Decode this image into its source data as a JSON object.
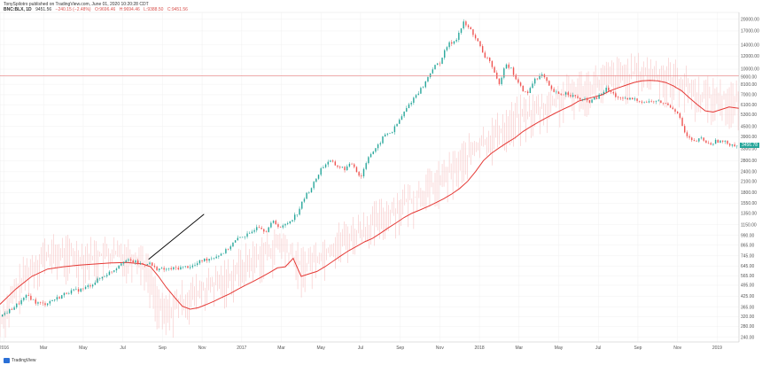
{
  "header": {
    "line1": "TonySpilotro published on TradingView.com, June 01, 2020 10:20:28 CDT",
    "symbol": "BNC:BLX, 1D",
    "last": "9451.56",
    "change": "−240.15 (−2.48%)",
    "open": "O:9696.46",
    "high": "H:9694.46",
    "low": "L:9388.50",
    "close": "C:9451.56"
  },
  "brand": {
    "name": "TradingView",
    "icon": "tradingview-logo-icon"
  },
  "colors": {
    "up": "#26a69a",
    "down": "#ef5350",
    "ma": "#e53935",
    "volatility": "#f4a6a6",
    "hline": "#e88080",
    "trendline": "#000000",
    "price_tag": "#26a69a"
  },
  "price_tag": {
    "label": "3456.78",
    "value": 3456.78
  },
  "chart_data": {
    "type": "line",
    "x_tick_labels": [
      "2016",
      "Mar",
      "May",
      "Jul",
      "Sep",
      "Nov",
      "2017",
      "Mar",
      "May",
      "Jul",
      "Sep",
      "Nov",
      "2018",
      "Mar",
      "May",
      "Jul",
      "Sep",
      "Nov",
      "2019"
    ],
    "x_tick_values": [
      0,
      2,
      4,
      6,
      8,
      10,
      12,
      14,
      16,
      18,
      20,
      22,
      24,
      26,
      28,
      30,
      32,
      34,
      36
    ],
    "xlim": [
      -0.2,
      37.1
    ],
    "y_tick_labels": [
      "20000.00",
      "17000.00",
      "14000.00",
      "12000.00",
      "10000.00",
      "9000.00",
      "8100.00",
      "7000.00",
      "6100.00",
      "5300.00",
      "4500.00",
      "3900.00",
      "3300.00",
      "2800.00",
      "2400.00",
      "2100.00",
      "1800.00",
      "1550.00",
      "1350.00",
      "1150.00",
      "990.00",
      "865.00",
      "745.00",
      "645.00",
      "565.00",
      "495.00",
      "425.00",
      "365.00",
      "320.00",
      "280.00",
      "240.00"
    ],
    "y_tick_values": [
      20000,
      17000,
      14000,
      12000,
      10000,
      9000,
      8100,
      7000,
      6100,
      5300,
      4500,
      3900,
      3300,
      2800,
      2400,
      2100,
      1800,
      1550,
      1350,
      1150,
      990,
      865,
      745,
      645,
      565,
      495,
      425,
      365,
      320,
      280,
      240
    ],
    "ylim": [
      225,
      22000
    ],
    "y_scale": "log",
    "grid": true,
    "horizontal_line": {
      "value": 9100
    },
    "trendline": {
      "x": [
        7.3,
        10.1
      ],
      "y": [
        710,
        1330
      ]
    },
    "series": [
      {
        "kind": "price",
        "x": [
          -0.2,
          0.3,
          0.8,
          1.2,
          1.6,
          2.0,
          2.4,
          2.8,
          3.2,
          3.6,
          4.0,
          4.4,
          4.8,
          5.2,
          5.6,
          6.0,
          6.5,
          7.0,
          7.3,
          7.6,
          8.0,
          8.4,
          8.8,
          9.2,
          9.6,
          10.0,
          10.4,
          10.8,
          11.2,
          11.6,
          12.0,
          12.4,
          12.8,
          13.2,
          13.6,
          14.0,
          14.4,
          14.8,
          15.2,
          15.6,
          16.0,
          16.4,
          16.8,
          17.2,
          17.6,
          18.0,
          18.4,
          18.8,
          19.2,
          19.6,
          20.0,
          20.4,
          20.8,
          21.2,
          21.6,
          22.0,
          22.4,
          22.8,
          23.2,
          23.6,
          24.0,
          24.2,
          24.5,
          24.8,
          25.0,
          25.3,
          25.6,
          26.0,
          26.4,
          26.8,
          27.2,
          27.6,
          28.0,
          28.4,
          28.8,
          29.2,
          29.6,
          30.0,
          30.4,
          30.8,
          31.2,
          31.6,
          32.0,
          32.4,
          32.8,
          33.2,
          33.6,
          34.0,
          34.4,
          34.8,
          35.2,
          35.6,
          36.0,
          36.4,
          36.8,
          37.1
        ],
        "y": [
          320,
          350,
          390,
          430,
          390,
          380,
          400,
          420,
          450,
          460,
          470,
          500,
          540,
          580,
          620,
          700,
          690,
          660,
          680,
          630,
          615,
          620,
          630,
          640,
          650,
          700,
          720,
          750,
          800,
          900,
          980,
          1000,
          1150,
          1050,
          1200,
          1100,
          1200,
          1350,
          1700,
          2000,
          2500,
          2800,
          2600,
          2500,
          2700,
          2200,
          3000,
          3300,
          4000,
          4200,
          5000,
          6000,
          7000,
          8000,
          10000,
          11000,
          14000,
          15000,
          19000,
          17000,
          14000,
          12000,
          11500,
          9000,
          8000,
          11000,
          10000,
          8000,
          7000,
          8800,
          9200,
          7500,
          7000,
          7200,
          6800,
          6500,
          6400,
          6800,
          7600,
          7000,
          6500,
          6600,
          6500,
          6300,
          6400,
          6300,
          6000,
          5500,
          4000,
          3600,
          3800,
          3500,
          3700,
          3600,
          3500,
          3450
        ]
      },
      {
        "kind": "moving-average",
        "x": [
          -0.2,
          0.6,
          1.4,
          2.2,
          3.0,
          3.8,
          4.6,
          5.4,
          6.2,
          7.0,
          7.4,
          7.8,
          8.2,
          8.6,
          9.0,
          9.4,
          9.8,
          10.2,
          10.6,
          11.0,
          11.4,
          11.8,
          12.2,
          12.6,
          13.0,
          13.4,
          13.8,
          14.2,
          14.6,
          15.0,
          15.4,
          15.8,
          16.2,
          16.6,
          17.0,
          17.4,
          17.8,
          18.2,
          18.6,
          19.0,
          19.4,
          19.8,
          20.2,
          20.6,
          21.0,
          21.4,
          21.8,
          22.2,
          22.6,
          23.0,
          23.4,
          23.8,
          24.2,
          24.6,
          25.0,
          25.4,
          25.8,
          26.2,
          26.6,
          27.0,
          27.4,
          27.8,
          28.2,
          28.6,
          29.0,
          29.4,
          29.8,
          30.2,
          30.6,
          31.0,
          31.4,
          31.8,
          32.2,
          32.6,
          33.0,
          33.4,
          33.8,
          34.2,
          34.6,
          35.0,
          35.4,
          35.8,
          36.2,
          36.6,
          37.1
        ],
        "y": [
          380,
          470,
          560,
          620,
          640,
          655,
          665,
          675,
          680,
          665,
          640,
          560,
          480,
          420,
          370,
          355,
          362,
          378,
          396,
          418,
          440,
          468,
          496,
          524,
          555,
          590,
          630,
          640,
          720,
          560,
          580,
          600,
          640,
          690,
          745,
          800,
          850,
          905,
          950,
          1020,
          1100,
          1180,
          1270,
          1350,
          1410,
          1480,
          1560,
          1650,
          1760,
          1900,
          2100,
          2400,
          2800,
          3100,
          3350,
          3600,
          3850,
          4200,
          4500,
          4800,
          5100,
          5400,
          5700,
          6000,
          6400,
          6600,
          6800,
          7000,
          7400,
          7700,
          8000,
          8300,
          8500,
          8550,
          8500,
          8300,
          7900,
          7400,
          6700,
          6100,
          5600,
          5500,
          5700,
          5900,
          5800
        ]
      },
      {
        "kind": "volatility-band",
        "x": [
          -0.2,
          1.0,
          2.0,
          3.0,
          4.0,
          5.0,
          6.0,
          7.0,
          8.0,
          9.0,
          10.0,
          11.0,
          12.0,
          13.0,
          14.0,
          15.0,
          16.0,
          17.0,
          18.0,
          19.0,
          20.0,
          21.0,
          22.0,
          23.0,
          24.0,
          25.0,
          26.0,
          27.0,
          28.0,
          29.0,
          30.0,
          31.0,
          32.0,
          33.0,
          34.0,
          35.0,
          36.0,
          37.1
        ],
        "y": [
          300,
          560,
          750,
          760,
          730,
          750,
          760,
          720,
          330,
          400,
          460,
          520,
          640,
          760,
          880,
          640,
          760,
          920,
          1060,
          1250,
          1500,
          1750,
          2100,
          2700,
          3500,
          4200,
          5200,
          5600,
          6600,
          7500,
          8200,
          9000,
          9400,
          9200,
          8600,
          7000,
          6700,
          6300
        ]
      }
    ]
  }
}
